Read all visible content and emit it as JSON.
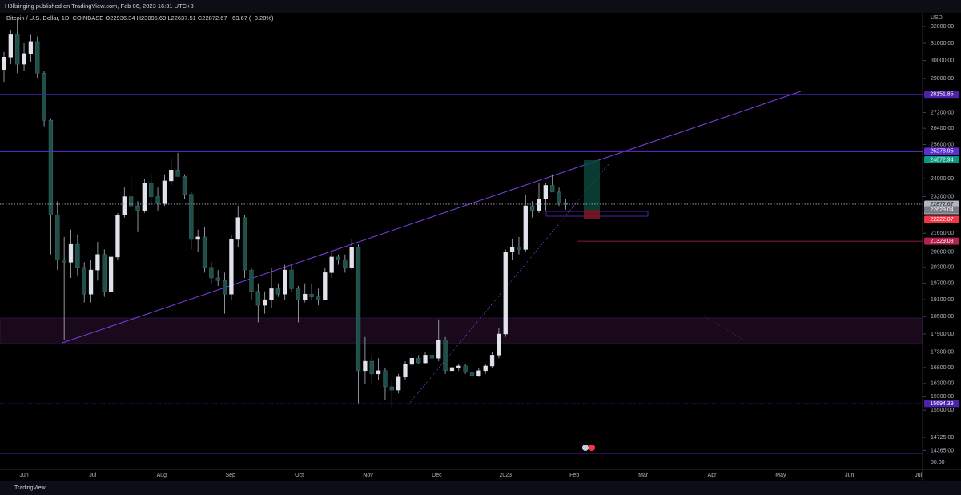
{
  "chart_data": {
    "type": "candlestick",
    "publisher": "H3llsinging published on TradingView.com, Feb 06, 2023 16:31 UTC+3",
    "legend": "Bitcoin / U.S. Dollar, 1D, COINBASE  O22936.34  H23095.69  L22637.51  C22872.67  −63.67 (−0.28%)",
    "unit": "USD",
    "countdown": "10:28:25",
    "volume_tick": "50.00",
    "brand": "TradingView",
    "log_scale": true,
    "up_color": "#e0e3eb",
    "down_color": "#1f4f4b",
    "xtick_labels": [
      "Jun",
      "Jul",
      "Aug",
      "Sep",
      "Oct",
      "Nov",
      "Dec",
      "2023",
      "Feb",
      "Mar",
      "Apr",
      "May",
      "Jun",
      "Jul"
    ],
    "yticks": [
      {
        "value": 32000,
        "label": "32000.00"
      },
      {
        "value": 31000,
        "label": "31000.00"
      },
      {
        "value": 30000,
        "label": "30000.00"
      },
      {
        "value": 29000,
        "label": "29000.00"
      },
      {
        "value": 27200,
        "label": "27200.00"
      },
      {
        "value": 26400,
        "label": "26400.00"
      },
      {
        "value": 25600,
        "label": "25600.00"
      },
      {
        "value": 24000,
        "label": "24000.00"
      },
      {
        "value": 23200,
        "label": "23200.00"
      },
      {
        "value": 21650,
        "label": "21650.00"
      },
      {
        "value": 20900,
        "label": "20900.00"
      },
      {
        "value": 20300,
        "label": "20300.00"
      },
      {
        "value": 19700,
        "label": "19700.00"
      },
      {
        "value": 19100,
        "label": "19100.00"
      },
      {
        "value": 18500,
        "label": "18500.00"
      },
      {
        "value": 17900,
        "label": "17900.00"
      },
      {
        "value": 17300,
        "label": "17300.00"
      },
      {
        "value": 16800,
        "label": "16800.00"
      },
      {
        "value": 16300,
        "label": "16300.00"
      },
      {
        "value": 15900,
        "label": "15900.00"
      },
      {
        "value": 15500,
        "label": "15500.00"
      },
      {
        "value": 14725,
        "label": "14725.00"
      },
      {
        "value": 14365,
        "label": "14365.00"
      }
    ],
    "levels": [
      {
        "value": 28151.85,
        "label": "28151.85",
        "color": "#4b22a8",
        "style": "solid"
      },
      {
        "value": 25278.95,
        "label": "25278.95",
        "color": "#5e2fd0",
        "style": "thick"
      },
      {
        "value": 24872.94,
        "label": "24872.94",
        "color": "#089981",
        "style": "none"
      },
      {
        "value": 22872.67,
        "label": "22872.67",
        "color": "#b2b5be",
        "style": "dotted"
      },
      {
        "value": 22629.04,
        "label": "22629.04",
        "color": "#787b86",
        "style": "none"
      },
      {
        "value": 22222.07,
        "label": "22222.07",
        "color": "#f23645",
        "style": "none"
      },
      {
        "value": 21329.08,
        "label": "21329.08",
        "color": "#b2224a",
        "style": "ray"
      },
      {
        "value": 15694.39,
        "label": "15694.39",
        "color": "#4b22a8",
        "style": "dotted"
      }
    ],
    "open": [
      29500,
      30200,
      31500,
      29800,
      30400,
      31100,
      29300,
      26800,
      22400,
      20600,
      20500,
      21200,
      20300,
      19300,
      20200,
      20800,
      19400,
      20700,
      22400,
      23200,
      22800,
      22600,
      23800,
      23200,
      22900,
      23900,
      24400,
      24100,
      23300,
      21400,
      21500,
      20300,
      19900,
      19800,
      19300,
      21400,
      22300,
      20200,
      19400,
      18900,
      19100,
      19500,
      19300,
      20200,
      19500,
      19100,
      19300,
      19200,
      19100,
      20100,
      20700,
      20600,
      20300,
      21100,
      16700,
      17000,
      16600,
      16700,
      16200,
      16100,
      16500,
      16900,
      17100,
      16950,
      17200,
      17100,
      17700,
      16700,
      16800,
      16850,
      16650,
      16550,
      16700,
      16850,
      17200,
      17900,
      20900,
      21100,
      21000,
      22800,
      22600,
      23100,
      23700,
      23400,
      22936.34
    ],
    "high": [
      30500,
      31800,
      32400,
      31000,
      31500,
      31400,
      29400,
      26900,
      23000,
      21500,
      21800,
      21600,
      20500,
      20600,
      21300,
      21000,
      20900,
      22500,
      23600,
      24200,
      23000,
      24000,
      24200,
      23600,
      24200,
      24900,
      25200,
      24200,
      23400,
      21800,
      21900,
      20500,
      20200,
      20100,
      21600,
      22800,
      22400,
      20300,
      19700,
      19400,
      20300,
      19700,
      20400,
      20400,
      19600,
      19700,
      19700,
      19500,
      20300,
      20900,
      20800,
      20800,
      21400,
      21200,
      17800,
      17200,
      17100,
      16800,
      16400,
      16600,
      17000,
      17300,
      17200,
      17300,
      17400,
      18400,
      17800,
      16900,
      16900,
      16900,
      16700,
      16800,
      16900,
      17300,
      18100,
      21000,
      21400,
      21500,
      23300,
      23000,
      23800,
      23800,
      24200,
      23600,
      23095.69
    ],
    "low": [
      28800,
      29800,
      29300,
      29400,
      29900,
      29000,
      26500,
      20800,
      20200,
      17700,
      19900,
      20000,
      19000,
      19000,
      19800,
      19200,
      19300,
      20600,
      22300,
      22600,
      21700,
      22500,
      22900,
      22600,
      22800,
      23700,
      24200,
      23100,
      21000,
      20900,
      20100,
      19700,
      19600,
      18600,
      19100,
      21100,
      19900,
      19100,
      18300,
      18600,
      18800,
      19200,
      19100,
      19400,
      18300,
      19000,
      19100,
      18900,
      19100,
      19900,
      20400,
      20100,
      20200,
      15700,
      16300,
      16300,
      16400,
      15800,
      15600,
      16000,
      16400,
      16800,
      16900,
      16900,
      17000,
      17000,
      16600,
      16500,
      16700,
      16600,
      16500,
      16500,
      16600,
      16800,
      17100,
      17800,
      20600,
      20800,
      20900,
      22300,
      22500,
      22600,
      23500,
      22800,
      22637.51
    ],
    "close": [
      30200,
      31500,
      29800,
      30400,
      31100,
      29300,
      26800,
      22400,
      20600,
      20500,
      21200,
      20300,
      19300,
      20200,
      20800,
      19400,
      20700,
      22400,
      23200,
      22800,
      22600,
      23800,
      23200,
      22900,
      23900,
      24400,
      24100,
      23300,
      21400,
      21500,
      20300,
      19900,
      19800,
      19300,
      21400,
      22300,
      20200,
      19400,
      18900,
      19100,
      19500,
      19300,
      20200,
      19500,
      19100,
      19300,
      19200,
      19100,
      20100,
      20700,
      20600,
      20300,
      21100,
      16700,
      17000,
      16600,
      16700,
      16200,
      16100,
      16500,
      16900,
      17100,
      16950,
      17200,
      17100,
      17700,
      16700,
      16800,
      16850,
      16650,
      16550,
      16700,
      16850,
      17200,
      17900,
      20900,
      21100,
      21000,
      22800,
      22600,
      23100,
      23700,
      23400,
      22936.34,
      22872.67
    ]
  }
}
